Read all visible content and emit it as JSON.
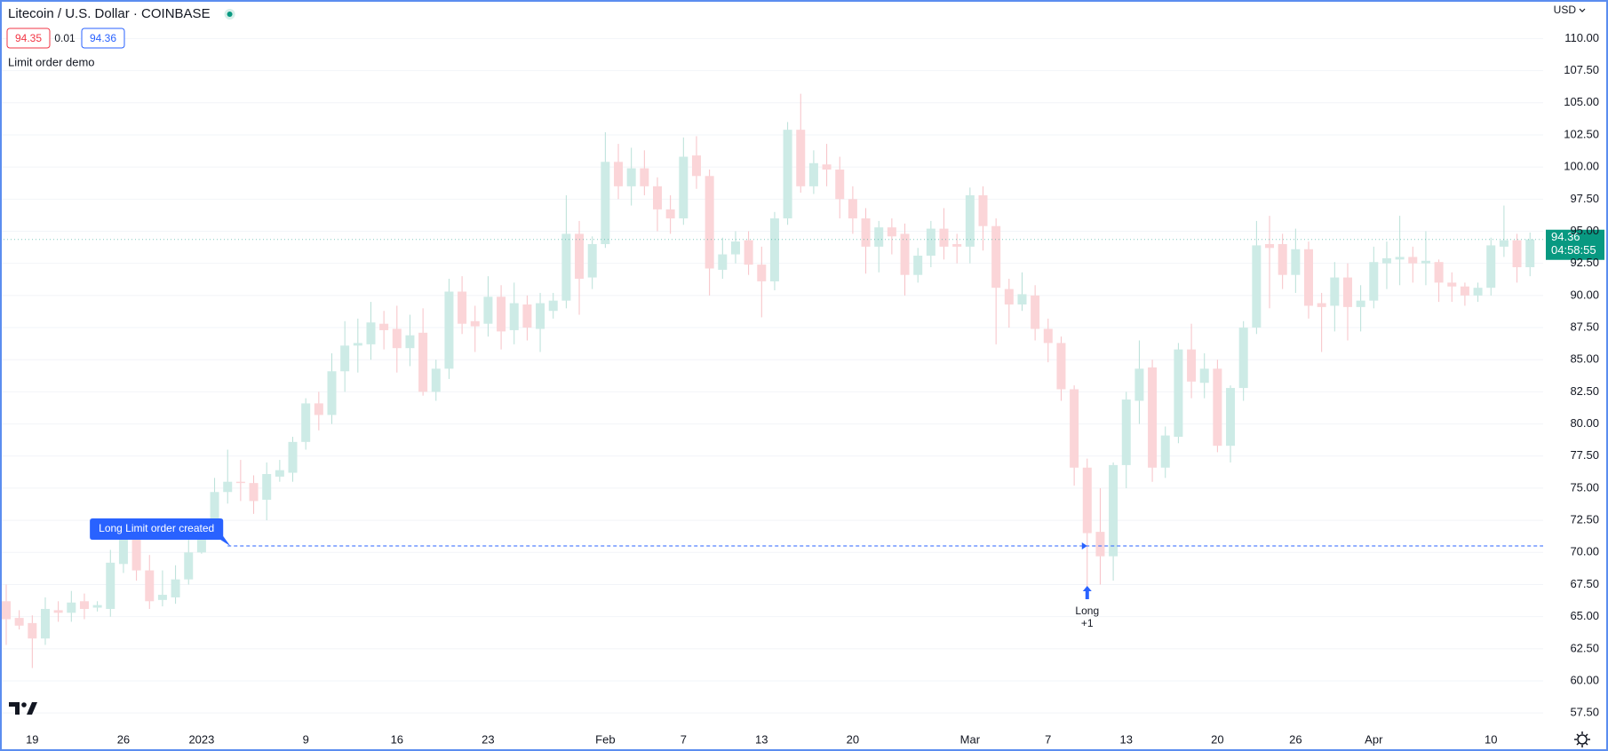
{
  "chart_data": {
    "type": "candlestick",
    "title": "Litecoin / U.S. Dollar · COINBASE",
    "bid": 94.35,
    "spread": 0.01,
    "ask": 94.36,
    "indicator": "Limit order demo",
    "currency": "USD",
    "countdown": "04:58:55",
    "order_label": "Long Limit order created",
    "order_price": 70.5,
    "trade_label": "Long",
    "trade_qty": "+1",
    "up_color": "#cdebe6",
    "down_color": "#fbd5d8",
    "up_wick": "#b9e0d8",
    "down_wick": "#f7c1c6",
    "price_label_color": "#089981",
    "order_color": "#2962ff",
    "categories": [
      null,
      null,
      "19",
      null,
      null,
      null,
      null,
      null,
      null,
      "26",
      null,
      null,
      null,
      null,
      null,
      "2023",
      null,
      null,
      null,
      null,
      null,
      null,
      null,
      "9",
      null,
      null,
      null,
      null,
      null,
      null,
      "16",
      null,
      null,
      null,
      null,
      null,
      null,
      "23",
      null,
      null,
      null,
      null,
      null,
      null,
      null,
      null,
      "Feb",
      null,
      null,
      null,
      null,
      null,
      "7",
      null,
      null,
      null,
      null,
      null,
      "13",
      null,
      null,
      null,
      null,
      null,
      null,
      "20",
      null,
      null,
      null,
      null,
      null,
      null,
      null,
      null,
      "Mar",
      null,
      null,
      null,
      null,
      null,
      "7",
      null,
      null,
      null,
      null,
      null,
      "13",
      null,
      null,
      null,
      null,
      null,
      null,
      "20",
      null,
      null,
      null,
      null,
      null,
      "26",
      null,
      null,
      null,
      null,
      null,
      "Apr",
      null,
      null,
      null,
      null,
      null,
      null,
      null,
      null,
      "10",
      null,
      null,
      null
    ],
    "open": [
      66.2,
      64.9,
      64.5,
      63.3,
      65.5,
      65.3,
      66.2,
      65.7,
      65.6,
      69.1,
      71.0,
      68.6,
      66.3,
      66.5,
      67.9,
      70.0,
      72.3,
      74.7,
      75.5,
      75.4,
      74.1,
      75.9,
      76.2,
      78.6,
      81.6,
      80.7,
      84.1,
      86.1,
      86.2,
      87.8,
      87.4,
      85.9,
      87.1,
      82.5,
      84.3,
      90.3,
      88.0,
      87.8,
      89.9,
      87.3,
      89.3,
      87.4,
      88.8,
      89.6,
      94.8,
      91.4,
      94.0,
      100.4,
      98.5,
      99.9,
      98.5,
      96.7,
      96.0,
      100.9,
      99.3,
      92.0,
      93.2,
      94.3,
      92.4,
      91.1,
      96.0,
      102.9,
      98.5,
      100.2,
      99.8,
      97.5,
      96.0,
      93.8,
      95.3,
      94.8,
      91.6,
      93.1,
      95.2,
      94.0,
      93.8,
      97.8,
      95.4,
      90.5,
      89.3,
      90.0,
      87.4,
      86.3,
      82.7,
      76.6,
      71.6,
      69.7,
      76.8,
      81.8,
      84.4,
      76.6,
      79.0,
      85.8,
      83.2,
      84.3,
      78.3,
      82.8,
      87.5,
      94.0,
      94.0,
      91.6,
      93.6,
      89.4,
      89.2,
      91.4,
      89.1,
      89.6,
      92.5,
      92.8,
      93.0,
      92.5,
      92.6,
      91.0,
      90.7,
      90.0,
      90.6,
      93.8,
      94.3,
      92.2
    ],
    "high": [
      67.5,
      65.5,
      65.1,
      66.5,
      66.2,
      67.0,
      66.8,
      66.2,
      70.2,
      72.5,
      72.5,
      69.8,
      68.6,
      69.0,
      71.5,
      72.5,
      75.8,
      78.0,
      77.2,
      76.0,
      77.0,
      77.2,
      79.0,
      82.0,
      82.5,
      85.5,
      88.0,
      88.2,
      89.5,
      88.8,
      89.2,
      88.5,
      89.0,
      85.0,
      91.3,
      91.5,
      89.2,
      91.5,
      90.8,
      91.0,
      90.0,
      90.2,
      90.2,
      97.8,
      95.8,
      94.6,
      102.7,
      101.8,
      101.5,
      101.3,
      99.2,
      97.8,
      102.3,
      102.4,
      99.8,
      94.5,
      95.0,
      95.0,
      93.8,
      96.5,
      103.5,
      105.7,
      101.3,
      101.8,
      100.8,
      98.5,
      96.8,
      95.8,
      96.0,
      95.6,
      93.7,
      95.8,
      96.8,
      94.8,
      98.4,
      98.5,
      96.0,
      91.3,
      91.8,
      90.8,
      88.2,
      86.8,
      83.0,
      77.3,
      75.0,
      77.0,
      82.5,
      86.5,
      85.0,
      79.8,
      86.3,
      87.8,
      85.5,
      85.0,
      83.0,
      88.0,
      95.8,
      96.2,
      94.8,
      95.2,
      94.2,
      90.2,
      92.6,
      92.5,
      90.8,
      93.8,
      94.2,
      96.2,
      93.8,
      95.0,
      92.8,
      91.8,
      91.0,
      91.0,
      94.5,
      97.0,
      94.8,
      94.9
    ],
    "low": [
      62.8,
      64.0,
      61.0,
      62.8,
      64.6,
      64.6,
      64.8,
      65.4,
      65.0,
      68.4,
      67.8,
      65.6,
      65.8,
      66.0,
      67.5,
      69.9,
      71.5,
      73.8,
      74.0,
      73.0,
      72.5,
      75.5,
      75.5,
      78.0,
      79.5,
      80.0,
      82.5,
      84.0,
      85.0,
      85.8,
      84.0,
      84.5,
      82.2,
      81.8,
      83.5,
      87.0,
      85.6,
      86.8,
      85.8,
      86.2,
      86.5,
      85.6,
      88.2,
      89.0,
      88.5,
      90.5,
      93.7,
      97.5,
      97.0,
      97.8,
      95.0,
      94.8,
      95.5,
      98.3,
      90.0,
      91.3,
      92.5,
      91.6,
      88.3,
      90.4,
      95.5,
      98.0,
      97.9,
      98.5,
      96.0,
      94.8,
      91.7,
      91.8,
      93.2,
      90.0,
      91.0,
      92.2,
      92.8,
      92.5,
      92.5,
      93.5,
      86.2,
      87.5,
      88.8,
      86.5,
      84.8,
      81.8,
      75.2,
      67.0,
      67.5,
      67.8,
      75.0,
      80.0,
      75.5,
      75.8,
      78.5,
      82.0,
      82.0,
      77.8,
      77.0,
      81.8,
      87.0,
      89.0,
      90.5,
      90.2,
      88.2,
      85.6,
      87.2,
      86.5,
      87.2,
      89.0,
      90.5,
      90.8,
      91.0,
      90.8,
      89.5,
      89.5,
      89.2,
      89.5,
      90.0,
      93.0,
      91.0,
      91.5
    ],
    "close": [
      64.8,
      64.3,
      63.3,
      65.6,
      65.3,
      66.1,
      65.6,
      65.9,
      69.2,
      71.0,
      68.6,
      66.2,
      66.7,
      67.9,
      70.0,
      71.1,
      74.7,
      75.5,
      75.4,
      74.0,
      76.1,
      76.4,
      78.6,
      81.6,
      80.7,
      84.1,
      86.1,
      86.3,
      87.9,
      87.3,
      85.9,
      86.9,
      82.5,
      84.3,
      90.3,
      87.8,
      87.6,
      89.9,
      87.2,
      89.4,
      87.5,
      89.4,
      89.6,
      94.8,
      91.3,
      94.0,
      100.4,
      98.5,
      99.9,
      98.5,
      96.7,
      96.0,
      100.8,
      99.3,
      92.1,
      93.2,
      94.2,
      92.4,
      91.1,
      96.0,
      102.9,
      98.5,
      100.3,
      99.8,
      97.5,
      96.0,
      93.8,
      95.3,
      94.6,
      91.6,
      93.1,
      95.2,
      93.8,
      93.8,
      97.8,
      95.4,
      90.6,
      89.3,
      90.1,
      87.4,
      86.3,
      82.7,
      76.6,
      71.5,
      69.7,
      76.8,
      81.9,
      84.3,
      76.6,
      79.1,
      85.8,
      83.3,
      84.3,
      78.3,
      82.8,
      87.5,
      93.9,
      93.7,
      91.6,
      93.6,
      89.2,
      89.1,
      91.4,
      89.1,
      89.6,
      92.6,
      92.9,
      93.0,
      92.5,
      92.7,
      91.0,
      90.7,
      90.0,
      90.6,
      93.9,
      94.3,
      92.2,
      94.36
    ],
    "ylim": [
      56.2,
      113.0
    ],
    "yticks": [
      {
        "value": 57.5,
        "label": "57.50"
      },
      {
        "value": 60,
        "label": "60.00"
      },
      {
        "value": 62.5,
        "label": "62.50"
      },
      {
        "value": 65,
        "label": "65.00"
      },
      {
        "value": 67.5,
        "label": "67.50"
      },
      {
        "value": 70,
        "label": "70.00"
      },
      {
        "value": 72.5,
        "label": "72.50"
      },
      {
        "value": 75,
        "label": "75.00"
      },
      {
        "value": 77.5,
        "label": "77.50"
      },
      {
        "value": 80,
        "label": "80.00"
      },
      {
        "value": 82.5,
        "label": "82.50"
      },
      {
        "value": 85,
        "label": "85.00"
      },
      {
        "value": 87.5,
        "label": "87.50"
      },
      {
        "value": 90,
        "label": "90.00"
      },
      {
        "value": 92.5,
        "label": "92.50"
      },
      {
        "value": 95,
        "label": "95.00"
      },
      {
        "value": 97.5,
        "label": "97.50"
      },
      {
        "value": 100,
        "label": "100.00"
      },
      {
        "value": 102.5,
        "label": "102.50"
      },
      {
        "value": 105,
        "label": "105.00"
      },
      {
        "value": 107.5,
        "label": "107.50"
      },
      {
        "value": 110,
        "label": "110.00"
      }
    ],
    "grid": true
  }
}
